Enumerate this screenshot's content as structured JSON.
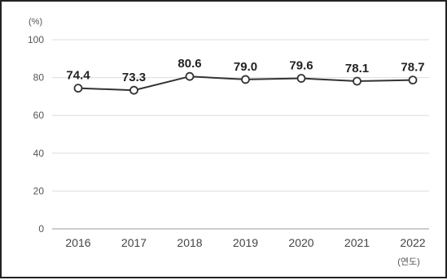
{
  "chart_data": {
    "type": "line",
    "y_unit": "(%)",
    "x_unit": "(연도)",
    "categories": [
      "2016",
      "2017",
      "2018",
      "2019",
      "2020",
      "2021",
      "2022"
    ],
    "values": [
      74.4,
      73.3,
      80.6,
      79.0,
      79.6,
      78.1,
      78.7
    ],
    "data_labels": [
      "74.4",
      "73.3",
      "80.6",
      "79.0",
      "79.6",
      "78.1",
      "78.7"
    ],
    "ylim": [
      0,
      100
    ],
    "yticks": [
      0,
      20,
      40,
      60,
      80,
      100
    ],
    "grid": true,
    "line_color": "#333333",
    "grid_color": "#dddddd"
  }
}
